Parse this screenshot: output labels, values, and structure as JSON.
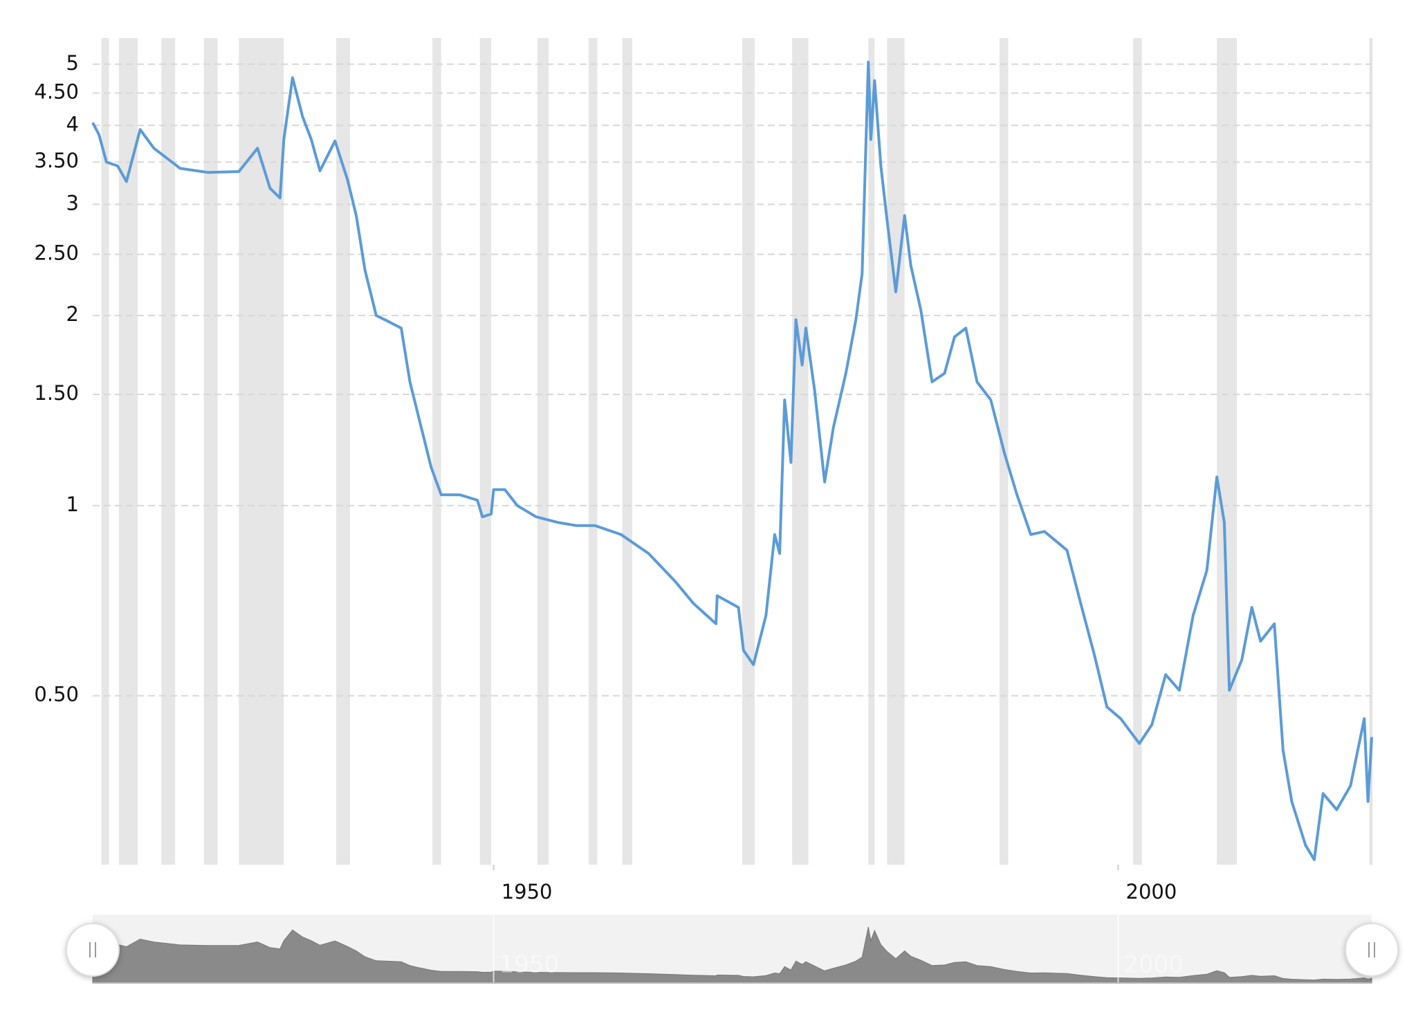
{
  "chart_data": {
    "type": "line",
    "log": true,
    "grid": true,
    "series": [
      {
        "color": "#5b9bd8",
        "x": [
          1917.9,
          1918.4,
          1919,
          1919.9,
          1920.6,
          1921.7,
          1922.8,
          1924.9,
          1927.1,
          1929.6,
          1931.1,
          1932.1,
          1932.9,
          1933.2,
          1933.9,
          1934.7,
          1935.4,
          1936.1,
          1937.3,
          1938.3,
          1939,
          1939.7,
          1940.6,
          1941.5,
          1942.6,
          1943.3,
          1944,
          1945,
          1945.8,
          1947.3,
          1948.7,
          1949.1,
          1949.8,
          1950,
          1950.9,
          1951.9,
          1953.4,
          1955.2,
          1956.6,
          1958.1,
          1960.2,
          1962.4,
          1964.5,
          1966,
          1967.8,
          1967.9,
          1969.6,
          1970,
          1970.8,
          1971.8,
          1972.5,
          1972.9,
          1973.3,
          1973.8,
          1974.2,
          1974.7,
          1975,
          1975.7,
          1976.5,
          1977.2,
          1978.2,
          1979,
          1979.5,
          1980,
          1980.2,
          1980.5,
          1981,
          1981.5,
          1982.2,
          1982.9,
          1983.4,
          1984.2,
          1985.1,
          1986.1,
          1986.9,
          1987.8,
          1988.7,
          1989.8,
          1990.9,
          1991.9,
          1993,
          1994.1,
          1995.9,
          1997,
          1998.1,
          1999.1,
          2000.2,
          2001.7,
          2002.7,
          2003.8,
          2004.9,
          2006,
          2007.1,
          2007.9,
          2008.5,
          2008.9,
          2009.9,
          2010.7,
          2011.4,
          2012.5,
          2013.2,
          2013.9,
          2015,
          2015.7,
          2016.4,
          2017.5,
          2018.6,
          2019.7,
          2020,
          2020.3
        ],
        "values": [
          4.04,
          3.87,
          3.5,
          3.45,
          3.26,
          3.94,
          3.68,
          3.42,
          3.37,
          3.38,
          3.68,
          3.18,
          3.07,
          3.8,
          4.76,
          4.13,
          3.8,
          3.39,
          3.78,
          3.28,
          2.88,
          2.36,
          2.0,
          1.96,
          1.91,
          1.57,
          1.38,
          1.15,
          1.04,
          1.04,
          1.02,
          0.96,
          0.97,
          1.06,
          1.06,
          1.0,
          0.96,
          0.94,
          0.93,
          0.93,
          0.9,
          0.84,
          0.76,
          0.7,
          0.65,
          0.72,
          0.69,
          0.59,
          0.56,
          0.67,
          0.9,
          0.84,
          1.47,
          1.17,
          1.97,
          1.67,
          1.91,
          1.52,
          1.09,
          1.33,
          1.62,
          1.97,
          2.33,
          5.04,
          3.8,
          4.71,
          3.45,
          2.83,
          2.18,
          2.88,
          2.4,
          2.04,
          1.57,
          1.62,
          1.85,
          1.91,
          1.57,
          1.47,
          1.21,
          1.04,
          0.9,
          0.91,
          0.85,
          0.7,
          0.58,
          0.48,
          0.46,
          0.42,
          0.45,
          0.54,
          0.51,
          0.67,
          0.79,
          1.11,
          0.94,
          0.51,
          0.57,
          0.69,
          0.61,
          0.65,
          0.41,
          0.34,
          0.29,
          0.275,
          0.35,
          0.33,
          0.36,
          0.46,
          0.34,
          0.43
        ]
      }
    ],
    "recessions": [
      [
        1918.6,
        1919.2
      ],
      [
        1920.0,
        1921.5
      ],
      [
        1923.4,
        1924.5
      ],
      [
        1926.8,
        1927.9
      ],
      [
        1929.6,
        1933.2
      ],
      [
        1937.4,
        1938.5
      ],
      [
        1945.1,
        1945.8
      ],
      [
        1948.9,
        1949.8
      ],
      [
        1953.5,
        1954.4
      ],
      [
        1957.6,
        1958.3
      ],
      [
        1960.3,
        1961.1
      ],
      [
        1969.9,
        1970.9
      ],
      [
        1973.9,
        1975.2
      ],
      [
        1980.0,
        1980.5
      ],
      [
        1981.5,
        1982.9
      ],
      [
        1990.5,
        1991.2
      ],
      [
        2001.2,
        2001.9
      ],
      [
        2007.9,
        2009.5
      ],
      [
        2020.1,
        2020.3
      ]
    ],
    "recession_color": "#e6e6e6",
    "xlim": [
      1917.9,
      2020.3
    ],
    "xticks": [
      1950,
      2000
    ],
    "ylim": [
      0.27,
      5.5
    ],
    "yticks": [
      {
        "value": 0.5,
        "label": "0.50"
      },
      1,
      {
        "value": 1.5,
        "label": "1.50"
      },
      2,
      {
        "value": 2.5,
        "label": "2.50"
      },
      3,
      {
        "value": 3.5,
        "label": "3.50"
      },
      4,
      {
        "value": 4.5,
        "label": "4.50"
      },
      5
    ]
  }
}
